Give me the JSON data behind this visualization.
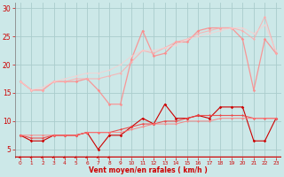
{
  "background_color": "#cce8e8",
  "grid_color": "#aacccc",
  "xlabel": "Vent moyen/en rafales ( km/h )",
  "xlabel_color": "#cc0000",
  "tick_color": "#cc0000",
  "arrow_color": "#cc0000",
  "xlim": [
    -0.5,
    23.5
  ],
  "ylim": [
    3.5,
    31
  ],
  "yticks": [
    5,
    10,
    15,
    20,
    25,
    30
  ],
  "xticks": [
    0,
    1,
    2,
    3,
    4,
    5,
    6,
    7,
    8,
    9,
    10,
    11,
    12,
    13,
    14,
    15,
    16,
    17,
    18,
    19,
    20,
    21,
    22,
    23
  ],
  "series": [
    {
      "x": [
        0,
        1,
        2,
        3,
        4,
        5,
        6,
        7,
        8,
        9,
        10,
        11,
        12,
        13,
        14,
        15,
        16,
        17,
        18,
        19,
        20,
        21,
        22,
        23
      ],
      "y": [
        7.5,
        6.5,
        6.5,
        7.5,
        7.5,
        7.5,
        8.0,
        5.0,
        7.5,
        7.5,
        9.0,
        10.5,
        9.5,
        13.0,
        10.5,
        10.5,
        11.0,
        10.5,
        12.5,
        12.5,
        12.5,
        6.5,
        6.5,
        10.5
      ],
      "color": "#cc0000",
      "lw": 0.8,
      "marker": "D",
      "ms": 1.8,
      "alpha": 1.0
    },
    {
      "x": [
        0,
        1,
        2,
        3,
        4,
        5,
        6,
        7,
        8,
        9,
        10,
        11,
        12,
        13,
        14,
        15,
        16,
        17,
        18,
        19,
        20,
        21,
        22,
        23
      ],
      "y": [
        7.5,
        7.0,
        7.0,
        7.5,
        7.5,
        7.5,
        8.0,
        8.0,
        8.0,
        8.5,
        9.0,
        9.5,
        9.5,
        10.0,
        10.0,
        10.5,
        11.0,
        11.0,
        11.0,
        11.0,
        11.0,
        10.5,
        10.5,
        10.5
      ],
      "color": "#ee4444",
      "lw": 0.8,
      "marker": "D",
      "ms": 1.5,
      "alpha": 0.9
    },
    {
      "x": [
        0,
        1,
        2,
        3,
        4,
        5,
        6,
        7,
        8,
        9,
        10,
        11,
        12,
        13,
        14,
        15,
        16,
        17,
        18,
        19,
        20,
        21,
        22,
        23
      ],
      "y": [
        7.5,
        7.5,
        7.5,
        7.5,
        7.5,
        7.5,
        8.0,
        8.0,
        8.0,
        8.0,
        8.5,
        9.0,
        9.5,
        9.5,
        9.5,
        10.0,
        10.0,
        10.0,
        10.5,
        10.5,
        10.5,
        10.5,
        10.5,
        10.5
      ],
      "color": "#ff7777",
      "lw": 0.7,
      "marker": "D",
      "ms": 1.3,
      "alpha": 0.85
    },
    {
      "x": [
        0,
        1,
        2,
        3,
        4,
        5,
        6,
        7,
        8,
        9,
        10,
        11,
        12,
        13,
        14,
        15,
        16,
        17,
        18,
        19,
        20,
        21,
        22,
        23
      ],
      "y": [
        17.0,
        15.5,
        15.5,
        17.0,
        17.0,
        17.0,
        17.5,
        15.5,
        13.0,
        13.0,
        21.0,
        26.0,
        21.5,
        22.0,
        24.0,
        24.0,
        26.0,
        26.5,
        26.5,
        26.5,
        24.5,
        15.5,
        24.5,
        22.0
      ],
      "color": "#ff8888",
      "lw": 0.9,
      "marker": "D",
      "ms": 1.8,
      "alpha": 0.85
    },
    {
      "x": [
        0,
        1,
        2,
        3,
        4,
        5,
        6,
        7,
        8,
        9,
        10,
        11,
        12,
        13,
        14,
        15,
        16,
        17,
        18,
        19,
        20,
        21,
        22,
        23
      ],
      "y": [
        17.0,
        15.5,
        15.5,
        17.0,
        17.0,
        17.5,
        17.5,
        17.5,
        18.0,
        18.5,
        20.5,
        22.5,
        22.0,
        23.0,
        24.0,
        24.5,
        25.5,
        26.0,
        26.5,
        26.5,
        26.0,
        24.5,
        28.5,
        22.0
      ],
      "color": "#ffaaaa",
      "lw": 0.8,
      "marker": "D",
      "ms": 1.5,
      "alpha": 0.8
    },
    {
      "x": [
        0,
        1,
        2,
        3,
        4,
        5,
        6,
        7,
        8,
        9,
        10,
        11,
        12,
        13,
        14,
        15,
        16,
        17,
        18,
        19,
        20,
        21,
        22,
        23
      ],
      "y": [
        17.0,
        15.5,
        16.0,
        17.0,
        17.5,
        18.0,
        18.5,
        18.5,
        19.0,
        20.0,
        21.5,
        22.5,
        22.5,
        23.0,
        23.5,
        24.5,
        25.0,
        25.5,
        26.0,
        26.5,
        26.5,
        25.5,
        27.0,
        22.5
      ],
      "color": "#ffcccc",
      "lw": 0.7,
      "marker": "D",
      "ms": 1.3,
      "alpha": 0.75
    }
  ],
  "arrow_angles_deg": [
    225,
    225,
    225,
    225,
    225,
    225,
    225,
    225,
    225,
    270,
    270,
    270,
    270,
    270,
    270,
    270,
    270,
    270,
    270,
    270,
    270,
    270,
    270,
    270
  ]
}
